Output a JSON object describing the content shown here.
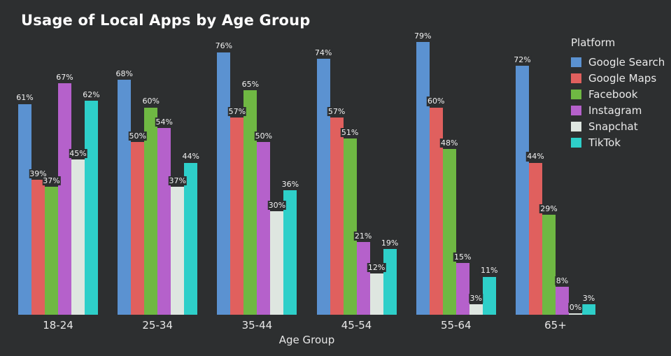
{
  "title": "Usage of Local Apps by Age Group",
  "background_color": "#2d2f30",
  "legend": {
    "title": "Platform",
    "items": [
      {
        "label": "Google Search",
        "color": "#5b92d1"
      },
      {
        "label": "Google Maps",
        "color": "#e0605e"
      },
      {
        "label": "Facebook",
        "color": "#6fb843"
      },
      {
        "label": "Instagram",
        "color": "#b561cb"
      },
      {
        "label": "Snapchat",
        "color": "#dee6e0"
      },
      {
        "label": "TikTok",
        "color": "#2ecfc9"
      }
    ]
  },
  "chart_data": {
    "type": "bar",
    "title": "Usage of Local Apps by Age Group",
    "xlabel": "Age Group",
    "ylabel": "",
    "ylim": [
      0,
      80
    ],
    "grid": false,
    "legend_position": "upper right",
    "value_label_format": "{}%",
    "categories": [
      "18-24",
      "25-34",
      "35-44",
      "45-54",
      "55-64",
      "65+"
    ],
    "series": [
      {
        "name": "Google Search",
        "color": "#5b92d1",
        "values": [
          61,
          68,
          76,
          74,
          79,
          72
        ]
      },
      {
        "name": "Google Maps",
        "color": "#e0605e",
        "values": [
          39,
          50,
          57,
          57,
          60,
          44
        ]
      },
      {
        "name": "Facebook",
        "color": "#6fb843",
        "values": [
          37,
          60,
          65,
          51,
          48,
          29
        ]
      },
      {
        "name": "Instagram",
        "color": "#b561cb",
        "values": [
          67,
          54,
          50,
          21,
          15,
          8
        ]
      },
      {
        "name": "Snapchat",
        "color": "#dee6e0",
        "values": [
          45,
          37,
          30,
          12,
          3,
          0
        ]
      },
      {
        "name": "TikTok",
        "color": "#2ecfc9",
        "values": [
          62,
          44,
          36,
          19,
          11,
          3
        ]
      }
    ]
  }
}
